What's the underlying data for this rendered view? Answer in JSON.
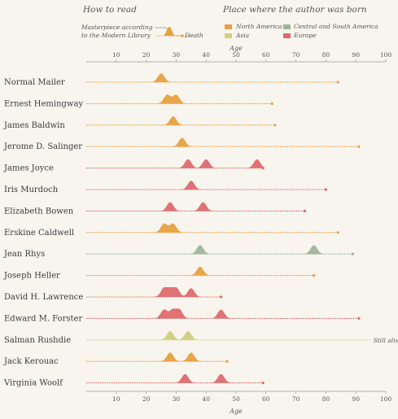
{
  "legend": {
    "how_title": "How to read",
    "how_masterpiece": "Masterpiece according",
    "how_masterpiece2": "to the Modern Library",
    "how_death": "Death",
    "place_title": "Place where the author was born",
    "regions": [
      {
        "label": "North America",
        "color": "#e8a040"
      },
      {
        "label": "Central and South America",
        "color": "#9fb59a"
      },
      {
        "label": "Asia",
        "color": "#cfd07a"
      },
      {
        "label": "Europe",
        "color": "#dd6a6e"
      }
    ]
  },
  "chart_data": {
    "type": "line",
    "xlabel": "Age",
    "xlim": [
      0,
      100
    ],
    "ticks": [
      10,
      20,
      30,
      40,
      50,
      60,
      70,
      80,
      90,
      100
    ],
    "authors": [
      {
        "name": "Normal Mailer",
        "region": "North America",
        "death": 84,
        "masterpieces": [
          25
        ]
      },
      {
        "name": "Ernest Hemingway",
        "region": "North America",
        "death": 62,
        "masterpieces": [
          27,
          30
        ]
      },
      {
        "name": "James Baldwin",
        "region": "North America",
        "death": 63,
        "masterpieces": [
          29
        ]
      },
      {
        "name": "Jerome D. Salinger",
        "region": "North America",
        "death": 91,
        "masterpieces": [
          32
        ]
      },
      {
        "name": "James Joyce",
        "region": "Europe",
        "death": 59,
        "masterpieces": [
          34,
          40,
          57
        ]
      },
      {
        "name": "Iris Murdoch",
        "region": "Europe",
        "death": 80,
        "masterpieces": [
          35
        ]
      },
      {
        "name": "Elizabeth Bowen",
        "region": "Europe",
        "death": 73,
        "masterpieces": [
          28,
          39
        ]
      },
      {
        "name": "Erskine Caldwell",
        "region": "North America",
        "death": 84,
        "masterpieces": [
          26,
          29
        ]
      },
      {
        "name": "Jean Rhys",
        "region": "Central and South America",
        "death": 89,
        "masterpieces": [
          38,
          76
        ]
      },
      {
        "name": "Joseph Heller",
        "region": "North America",
        "death": 76,
        "masterpieces": [
          38
        ]
      },
      {
        "name": "David H. Lawrence",
        "region": "Europe",
        "death": 45,
        "masterpieces": [
          26,
          28,
          30,
          35
        ]
      },
      {
        "name": "Edward M. Forster",
        "region": "Europe",
        "death": 91,
        "masterpieces": [
          26,
          29,
          31,
          45
        ]
      },
      {
        "name": "Salman Rushdie",
        "region": "Asia",
        "death": null,
        "alive_label": "Still alive",
        "masterpieces": [
          28,
          34
        ]
      },
      {
        "name": "Jack Kerouac",
        "region": "North America",
        "death": 47,
        "masterpieces": [
          28,
          35
        ]
      },
      {
        "name": "Virginia Woolf",
        "region": "Europe",
        "death": 59,
        "masterpieces": [
          33,
          45
        ]
      }
    ]
  }
}
